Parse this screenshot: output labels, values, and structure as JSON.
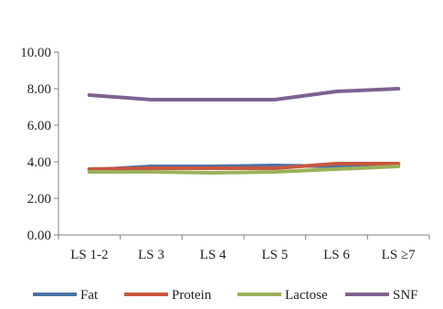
{
  "chart_data": {
    "type": "line",
    "categories": [
      "LS 1-2",
      "LS 3",
      "LS 4",
      "LS 5",
      "LS 6",
      "LS ≥7"
    ],
    "ylim": [
      0,
      10
    ],
    "yticks": [
      "0.00",
      "2.00",
      "4.00",
      "6.00",
      "8.00",
      "10.00"
    ],
    "grid": false,
    "legend_position": "bottom",
    "series": [
      {
        "name": "Fat",
        "color": "#4a72a8",
        "values": [
          3.55,
          3.75,
          3.75,
          3.8,
          3.75,
          3.85
        ]
      },
      {
        "name": "Protein",
        "color": "#c8573e",
        "values": [
          3.6,
          3.65,
          3.65,
          3.65,
          3.9,
          3.9
        ]
      },
      {
        "name": "Lactose",
        "color": "#9bb15a",
        "values": [
          3.45,
          3.45,
          3.4,
          3.45,
          3.6,
          3.75
        ]
      },
      {
        "name": "SNF",
        "color": "#7e6291",
        "values": [
          7.65,
          7.4,
          7.4,
          7.4,
          7.85,
          8.0
        ]
      }
    ]
  }
}
